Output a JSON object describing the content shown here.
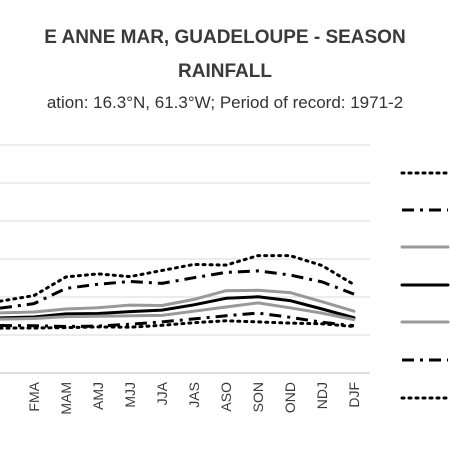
{
  "chart_data": {
    "type": "line",
    "title_line1": "E ANNE MAR, GUADELOUPE - SEASON",
    "title_line2": "RAINFALL",
    "subtitle": "ation: 16.3°N, 61.3°W; Period of record: 1971-2",
    "categories": [
      "FMA",
      "MAM",
      "AMJ",
      "MJJ",
      "JJA",
      "JAS",
      "ASO",
      "SON",
      "OND",
      "NDJ",
      "DJF"
    ],
    "grid": true,
    "series": [
      {
        "style": "dotted-wide",
        "color": "#000000",
        "values": [
          1,
          50,
          58,
          51,
          67,
          83,
          81,
          106,
          106,
          80,
          30
        ]
      },
      {
        "style": "dash-dot",
        "color": "#000000",
        "values": [
          -20,
          20,
          31,
          38,
          33,
          48,
          62,
          66,
          55,
          37,
          5
        ]
      },
      {
        "style": "solid",
        "color": "#999999",
        "values": [
          -42,
          -34,
          -31,
          -24,
          -25,
          -9,
          14,
          15,
          9,
          -15,
          -40
        ]
      },
      {
        "style": "solid-bold",
        "color": "#000000",
        "values": [
          -55,
          -47,
          -46,
          -41,
          -37,
          -23,
          -6,
          -2,
          -12,
          -34,
          -57
        ]
      },
      {
        "style": "solid",
        "color": "#999999",
        "values": [
          -59,
          -54,
          -53,
          -52,
          -51,
          -40,
          -29,
          -18,
          -31,
          -45,
          -62
        ]
      },
      {
        "style": "dash-dot",
        "color": "#000000",
        "values": [
          -78,
          -80,
          -79,
          -74,
          -68,
          -60,
          -52,
          -45,
          -56,
          -69,
          -78
        ]
      },
      {
        "style": "dotted",
        "color": "#000000",
        "values": [
          -84,
          -83,
          -81,
          -82,
          -77,
          -70,
          -65,
          -68,
          -71,
          -73,
          -80
        ]
      }
    ]
  }
}
